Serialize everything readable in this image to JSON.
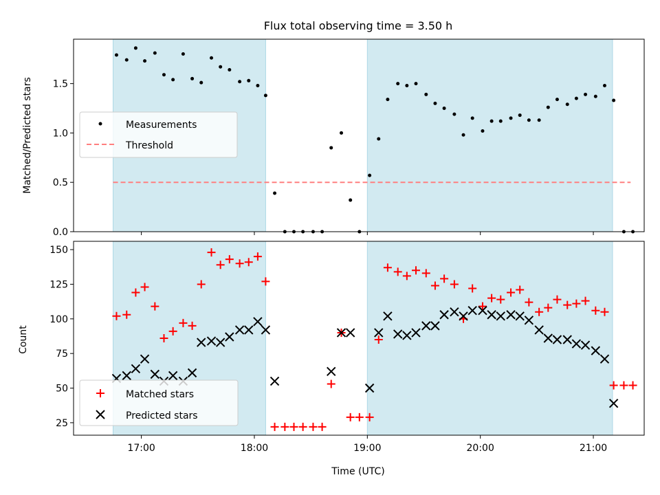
{
  "figure": {
    "title": "Flux total observing time = 3.50 h",
    "xlabel": "Time (UTC)",
    "x_tick_labels": [
      "17:00",
      "18:00",
      "19:00",
      "20:00",
      "21:00"
    ]
  },
  "chart_data": [
    {
      "type": "scatter",
      "panel": "top",
      "ylabel": "Matched/Predicted stars",
      "x_unit": "hours UTC",
      "xlim": [
        16.4,
        21.45
      ],
      "ylim": [
        0,
        1.95
      ],
      "y_ticks": [
        "0.0",
        "0.5",
        "1.0",
        "1.5"
      ],
      "shaded_intervals": [
        [
          16.75,
          18.1
        ],
        [
          19.0,
          21.17
        ]
      ],
      "threshold": {
        "value": 0.5,
        "x_range": [
          16.75,
          21.33
        ]
      },
      "colors": {
        "shade": "#add8e6",
        "measurement": "#000000",
        "threshold": "#ff7f7f"
      },
      "legend": {
        "position": "center-left",
        "entries": [
          "Measurements",
          "Threshold"
        ]
      },
      "series": [
        {
          "name": "Measurements",
          "x": [
            16.78,
            16.87,
            16.95,
            17.03,
            17.12,
            17.2,
            17.28,
            17.37,
            17.45,
            17.53,
            17.62,
            17.7,
            17.78,
            17.87,
            17.95,
            18.03,
            18.1,
            18.18,
            18.27,
            18.35,
            18.43,
            18.52,
            18.6,
            18.68,
            18.77,
            18.85,
            18.93,
            19.02,
            19.1,
            19.18,
            19.27,
            19.35,
            19.43,
            19.52,
            19.6,
            19.68,
            19.77,
            19.85,
            19.93,
            20.02,
            20.1,
            20.18,
            20.27,
            20.35,
            20.43,
            20.52,
            20.6,
            20.68,
            20.77,
            20.85,
            20.93,
            21.02,
            21.1,
            21.18,
            21.27,
            21.35
          ],
          "y": [
            1.79,
            1.74,
            1.86,
            1.73,
            1.81,
            1.59,
            1.54,
            1.8,
            1.55,
            1.51,
            1.76,
            1.67,
            1.64,
            1.52,
            1.53,
            1.48,
            1.38,
            0.39,
            0.0,
            0.0,
            0.0,
            0.0,
            0.0,
            0.85,
            1.0,
            0.32,
            0.0,
            0.57,
            0.94,
            1.34,
            1.5,
            1.48,
            1.5,
            1.39,
            1.3,
            1.25,
            1.19,
            0.98,
            1.15,
            1.02,
            1.12,
            1.12,
            1.15,
            1.18,
            1.13,
            1.13,
            1.26,
            1.34,
            1.29,
            1.35,
            1.39,
            1.37,
            1.48,
            1.33,
            0.0,
            0.0
          ]
        }
      ]
    },
    {
      "type": "scatter",
      "panel": "bottom",
      "ylabel": "Count",
      "x_unit": "hours UTC",
      "xlim": [
        16.4,
        21.45
      ],
      "ylim": [
        16,
        156
      ],
      "y_ticks": [
        "25",
        "50",
        "75",
        "100",
        "125",
        "150"
      ],
      "shaded_intervals": [
        [
          16.75,
          18.1
        ],
        [
          19.0,
          21.17
        ]
      ],
      "colors": {
        "shade": "#add8e6",
        "matched": "#ff0000",
        "predicted": "#000000"
      },
      "legend": {
        "position": "lower-left",
        "entries": [
          "Matched stars",
          "Predicted stars"
        ]
      },
      "series": [
        {
          "name": "Matched stars",
          "marker": "plus",
          "x": [
            16.78,
            16.87,
            16.95,
            17.03,
            17.12,
            17.2,
            17.28,
            17.37,
            17.45,
            17.53,
            17.62,
            17.7,
            17.78,
            17.87,
            17.95,
            18.03,
            18.1,
            18.18,
            18.27,
            18.35,
            18.43,
            18.52,
            18.6,
            18.68,
            18.77,
            18.85,
            18.93,
            19.02,
            19.1,
            19.18,
            19.27,
            19.35,
            19.43,
            19.52,
            19.6,
            19.68,
            19.77,
            19.85,
            19.93,
            20.02,
            20.1,
            20.18,
            20.27,
            20.35,
            20.43,
            20.52,
            20.6,
            20.68,
            20.77,
            20.85,
            20.93,
            21.02,
            21.1,
            21.18,
            21.27,
            21.35
          ],
          "y": [
            102,
            103,
            119,
            123,
            109,
            86,
            91,
            97,
            95,
            125,
            148,
            139,
            143,
            140,
            141,
            145,
            127,
            22,
            22,
            22,
            22,
            22,
            22,
            53,
            90,
            29,
            29,
            29,
            85,
            137,
            134,
            131,
            135,
            133,
            124,
            129,
            125,
            100,
            122,
            109,
            115,
            114,
            119,
            121,
            112,
            105,
            108,
            114,
            110,
            111,
            113,
            106,
            105,
            52,
            52,
            52
          ]
        },
        {
          "name": "Predicted stars",
          "marker": "x",
          "x": [
            16.78,
            16.87,
            16.95,
            17.03,
            17.12,
            17.2,
            17.28,
            17.37,
            17.45,
            17.53,
            17.62,
            17.7,
            17.78,
            17.87,
            17.95,
            18.03,
            18.1,
            18.18,
            18.68,
            18.77,
            18.85,
            19.02,
            19.1,
            19.18,
            19.27,
            19.35,
            19.43,
            19.52,
            19.6,
            19.68,
            19.77,
            19.85,
            19.93,
            20.02,
            20.1,
            20.18,
            20.27,
            20.35,
            20.43,
            20.52,
            20.6,
            20.68,
            20.77,
            20.85,
            20.93,
            21.02,
            21.1,
            21.18
          ],
          "y": [
            57,
            59,
            64,
            71,
            60,
            55,
            59,
            55,
            61,
            83,
            84,
            83,
            87,
            92,
            92,
            98,
            92,
            55,
            62,
            90,
            90,
            50,
            90,
            102,
            89,
            88,
            90,
            95,
            95,
            103,
            105,
            102,
            106,
            106,
            103,
            102,
            103,
            102,
            99,
            92,
            86,
            85,
            85,
            82,
            81,
            77,
            71,
            39
          ]
        }
      ]
    }
  ]
}
